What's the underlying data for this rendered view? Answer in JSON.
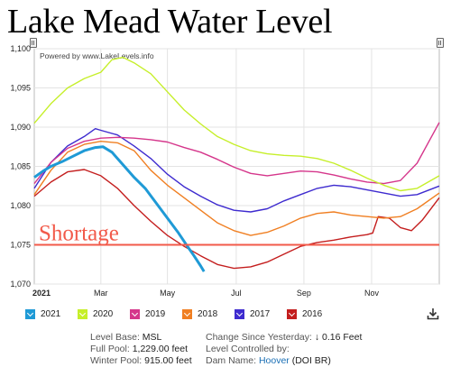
{
  "title": "Lake Mead Water Level",
  "powered_by": "Powered by www.LakeLevels.info",
  "shortage_label": "Shortage",
  "colors": {
    "2021": "#1f9ad6",
    "2020": "#c6ef2a",
    "2019": "#d5368b",
    "2018": "#f07f22",
    "2017": "#3e2bcf",
    "2016": "#c41e1e",
    "shortage": "#f25a4a"
  },
  "legend": [
    {
      "label": "2021",
      "color": "#1f9ad6"
    },
    {
      "label": "2020",
      "color": "#c6ef2a"
    },
    {
      "label": "2019",
      "color": "#d5368b"
    },
    {
      "label": "2018",
      "color": "#f07f22"
    },
    {
      "label": "2017",
      "color": "#3e2bcf"
    },
    {
      "label": "2016",
      "color": "#c41e1e"
    }
  ],
  "info": {
    "level_base_label": "Level Base:",
    "level_base_value": "MSL",
    "full_pool_label": "Full Pool:",
    "full_pool_value": "1,229.00 feet",
    "winter_pool_label": "Winter Pool:",
    "winter_pool_value": "915.00 feet",
    "change_label": "Change Since Yesterday:",
    "change_value": "↓ 0.16 Feet",
    "controlled_label": "Level Controlled by:",
    "dam_label": "Dam Name:",
    "dam_value": "Hoover",
    "dam_extra": "(DOI BR)"
  },
  "chart_data": {
    "type": "line",
    "x_ticks": [
      {
        "label": "2021",
        "day": 0
      },
      {
        "label": "Mar",
        "day": 60
      },
      {
        "label": "May",
        "day": 120
      },
      {
        "label": "Jul",
        "day": 182
      },
      {
        "label": "Sep",
        "day": 243
      },
      {
        "label": "Nov",
        "day": 304
      }
    ],
    "xlim": [
      0,
      365
    ],
    "ylim": [
      1070,
      1100
    ],
    "y_ticks": [
      "1,070",
      "1,075",
      "1,080",
      "1,085",
      "1,090",
      "1,095",
      "1,100"
    ],
    "grid": true,
    "shortage_level": 1075,
    "series": [
      {
        "name": "2016",
        "color": "#c41e1e",
        "points": [
          [
            0,
            1081.2
          ],
          [
            15,
            1083
          ],
          [
            30,
            1084.3
          ],
          [
            45,
            1084.6
          ],
          [
            60,
            1083.8
          ],
          [
            75,
            1082.2
          ],
          [
            90,
            1080
          ],
          [
            105,
            1078
          ],
          [
            120,
            1076.2
          ],
          [
            135,
            1074.8
          ],
          [
            150,
            1073.6
          ],
          [
            165,
            1072.5
          ],
          [
            180,
            1072
          ],
          [
            195,
            1072.2
          ],
          [
            210,
            1072.8
          ],
          [
            225,
            1073.8
          ],
          [
            240,
            1074.8
          ],
          [
            255,
            1075.3
          ],
          [
            270,
            1075.6
          ],
          [
            285,
            1076
          ],
          [
            300,
            1076.3
          ],
          [
            305,
            1076.5
          ],
          [
            310,
            1078.6
          ],
          [
            320,
            1078.4
          ],
          [
            330,
            1077.2
          ],
          [
            340,
            1076.8
          ],
          [
            350,
            1078.2
          ],
          [
            365,
            1081
          ]
        ]
      },
      {
        "name": "2017",
        "color": "#3e2bcf",
        "points": [
          [
            0,
            1082.2
          ],
          [
            15,
            1085.5
          ],
          [
            30,
            1087.6
          ],
          [
            45,
            1088.8
          ],
          [
            55,
            1089.8
          ],
          [
            60,
            1089.6
          ],
          [
            75,
            1089
          ],
          [
            90,
            1087.6
          ],
          [
            105,
            1086
          ],
          [
            120,
            1084
          ],
          [
            135,
            1082.4
          ],
          [
            150,
            1081.2
          ],
          [
            165,
            1080.1
          ],
          [
            180,
            1079.4
          ],
          [
            195,
            1079.2
          ],
          [
            210,
            1079.6
          ],
          [
            225,
            1080.6
          ],
          [
            240,
            1081.4
          ],
          [
            255,
            1082.2
          ],
          [
            270,
            1082.6
          ],
          [
            285,
            1082.4
          ],
          [
            300,
            1082
          ],
          [
            315,
            1081.6
          ],
          [
            330,
            1081.2
          ],
          [
            345,
            1081.4
          ],
          [
            365,
            1082.5
          ]
        ]
      },
      {
        "name": "2018",
        "color": "#f07f22",
        "points": [
          [
            0,
            1081.4
          ],
          [
            15,
            1084.5
          ],
          [
            30,
            1086.8
          ],
          [
            45,
            1087.8
          ],
          [
            60,
            1088.2
          ],
          [
            75,
            1088
          ],
          [
            90,
            1087
          ],
          [
            105,
            1084.5
          ],
          [
            120,
            1082.6
          ],
          [
            135,
            1081
          ],
          [
            150,
            1079.4
          ],
          [
            165,
            1077.8
          ],
          [
            180,
            1076.8
          ],
          [
            195,
            1076.2
          ],
          [
            210,
            1076.6
          ],
          [
            225,
            1077.4
          ],
          [
            240,
            1078.4
          ],
          [
            255,
            1079
          ],
          [
            270,
            1079.2
          ],
          [
            285,
            1078.8
          ],
          [
            300,
            1078.6
          ],
          [
            315,
            1078.4
          ],
          [
            330,
            1078.6
          ],
          [
            345,
            1079.6
          ],
          [
            365,
            1081.6
          ]
        ]
      },
      {
        "name": "2019",
        "color": "#d5368b",
        "points": [
          [
            0,
            1082.8
          ],
          [
            15,
            1085.5
          ],
          [
            30,
            1087.3
          ],
          [
            45,
            1088.2
          ],
          [
            60,
            1088.6
          ],
          [
            75,
            1088.7
          ],
          [
            90,
            1088.6
          ],
          [
            105,
            1088.4
          ],
          [
            120,
            1088.1
          ],
          [
            135,
            1087.4
          ],
          [
            150,
            1086.8
          ],
          [
            165,
            1085.9
          ],
          [
            180,
            1084.9
          ],
          [
            195,
            1084.1
          ],
          [
            210,
            1083.8
          ],
          [
            225,
            1084.1
          ],
          [
            240,
            1084.4
          ],
          [
            255,
            1084.3
          ],
          [
            270,
            1083.9
          ],
          [
            285,
            1083.4
          ],
          [
            300,
            1083
          ],
          [
            315,
            1082.8
          ],
          [
            330,
            1083.2
          ],
          [
            345,
            1085.4
          ],
          [
            365,
            1090.6
          ]
        ]
      },
      {
        "name": "2020",
        "color": "#c6ef2a",
        "points": [
          [
            0,
            1090.5
          ],
          [
            15,
            1093
          ],
          [
            30,
            1095
          ],
          [
            45,
            1096.2
          ],
          [
            60,
            1097
          ],
          [
            70,
            1098.6
          ],
          [
            80,
            1098.9
          ],
          [
            90,
            1098.2
          ],
          [
            105,
            1096.8
          ],
          [
            120,
            1094.5
          ],
          [
            135,
            1092.2
          ],
          [
            150,
            1090.4
          ],
          [
            165,
            1088.8
          ],
          [
            180,
            1087.8
          ],
          [
            195,
            1087
          ],
          [
            210,
            1086.6
          ],
          [
            225,
            1086.4
          ],
          [
            240,
            1086.3
          ],
          [
            255,
            1086
          ],
          [
            270,
            1085.4
          ],
          [
            285,
            1084.5
          ],
          [
            300,
            1083.5
          ],
          [
            315,
            1082.6
          ],
          [
            330,
            1081.9
          ],
          [
            345,
            1082.2
          ],
          [
            365,
            1083.8
          ]
        ]
      },
      {
        "name": "2021",
        "color": "#1f9ad6",
        "points": [
          [
            0,
            1083.6
          ],
          [
            8,
            1084.4
          ],
          [
            15,
            1085
          ],
          [
            25,
            1085.6
          ],
          [
            35,
            1086.3
          ],
          [
            45,
            1087
          ],
          [
            55,
            1087.4
          ],
          [
            62,
            1087.5
          ],
          [
            70,
            1086.8
          ],
          [
            80,
            1085.2
          ],
          [
            90,
            1083.6
          ],
          [
            100,
            1082.2
          ],
          [
            110,
            1080.3
          ],
          [
            120,
            1078.4
          ],
          [
            130,
            1076.5
          ],
          [
            138,
            1074.8
          ],
          [
            144,
            1073.6
          ],
          [
            150,
            1072.3
          ],
          [
            153,
            1071.6
          ]
        ]
      }
    ]
  }
}
